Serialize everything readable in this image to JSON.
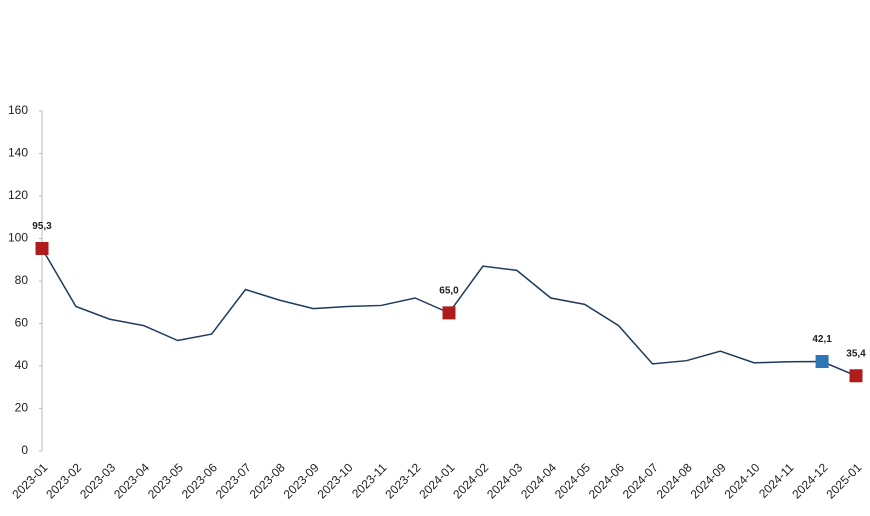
{
  "chart_data": {
    "type": "line",
    "categories": [
      "2023-01",
      "2023-02",
      "2023-03",
      "2023-04",
      "2023-05",
      "2023-06",
      "2023-07",
      "2023-08",
      "2023-09",
      "2023-10",
      "2023-11",
      "2023-12",
      "2024-01",
      "2024-02",
      "2024-03",
      "2024-04",
      "2024-05",
      "2024-06",
      "2024-07",
      "2024-08",
      "2024-09",
      "2024-10",
      "2024-11",
      "2024-12",
      "2025-01"
    ],
    "series": [
      {
        "color": "#1f3a5a",
        "values": [
          95.3,
          68,
          62,
          59,
          52,
          55,
          76,
          71,
          67,
          68,
          68.5,
          72,
          65.0,
          87,
          85,
          72,
          69,
          59,
          41,
          42.5,
          47,
          41.5,
          42,
          42.1,
          35.4
        ],
        "value_labels": [
          "95,3",
          null,
          null,
          null,
          null,
          null,
          null,
          null,
          null,
          null,
          null,
          null,
          "65,0",
          null,
          null,
          null,
          null,
          null,
          null,
          null,
          null,
          null,
          null,
          "42,1",
          "35,4"
        ],
        "marker_colors": [
          "#b01c1c",
          null,
          null,
          null,
          null,
          null,
          null,
          null,
          null,
          null,
          null,
          null,
          "#b01c1c",
          null,
          null,
          null,
          null,
          null,
          null,
          null,
          null,
          null,
          null,
          "#2e75b6",
          "#b01c1c"
        ]
      }
    ],
    "ylim": [
      0,
      160
    ],
    "yticks": [
      0,
      20,
      40,
      60,
      80,
      100,
      120,
      140,
      160
    ],
    "grid": false
  }
}
